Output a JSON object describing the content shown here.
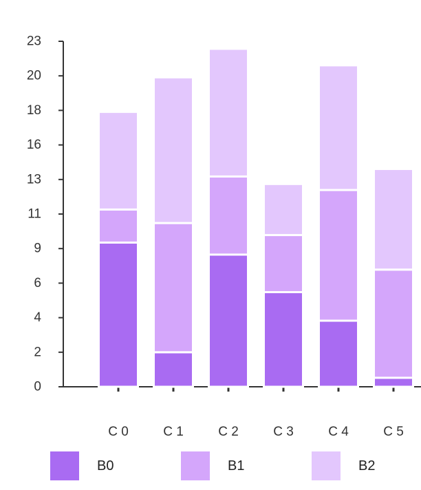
{
  "chart_data": {
    "type": "bar",
    "stacked": true,
    "categories": [
      "C 0",
      "C 1",
      "C 2",
      "C 3",
      "C 4",
      "C 5"
    ],
    "series": [
      {
        "name": "B0",
        "values": [
          9.6,
          2.3,
          8.8,
          6.3,
          4.4,
          0.6
        ]
      },
      {
        "name": "B1",
        "values": [
          2.2,
          8.6,
          5.2,
          3.8,
          8.7,
          7.2
        ]
      },
      {
        "name": "B2",
        "values": [
          6.5,
          9.7,
          8.5,
          3.4,
          8.3,
          6.7
        ]
      }
    ],
    "yticks": [
      "0",
      "2",
      "4",
      "6",
      "9",
      "11",
      "13",
      "16",
      "18",
      "20",
      "23"
    ],
    "ylim": [
      0,
      23
    ],
    "grid": false,
    "legend_position": "bottom",
    "colors": [
      "#a96bf2",
      "#d4a6fb",
      "#e3c7fd"
    ],
    "title": "",
    "xlabel": "",
    "ylabel": ""
  }
}
